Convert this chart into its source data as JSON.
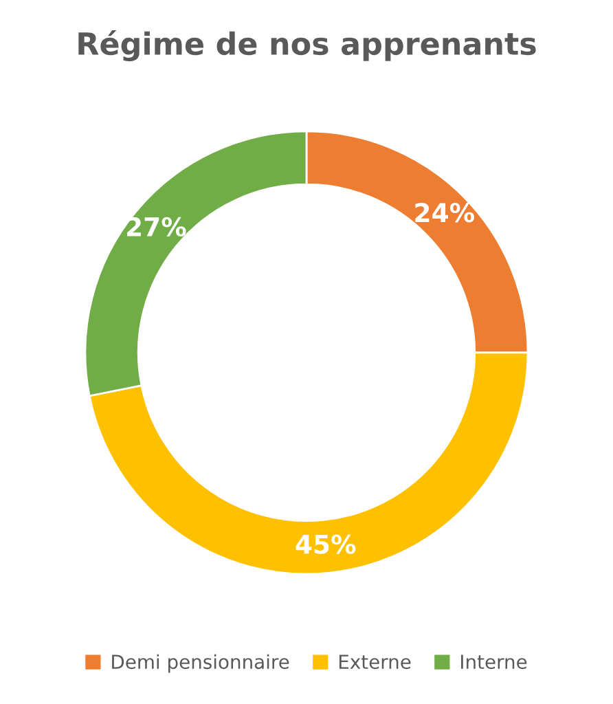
{
  "chart_data": {
    "type": "donut",
    "title": "Régime de nos apprenants",
    "categories": [
      "Demi pensionnaire",
      "Externe",
      "Interne"
    ],
    "values": [
      24,
      45,
      27
    ],
    "value_labels": [
      "24%",
      "45%",
      "27%"
    ],
    "colors": [
      "#ed7d31",
      "#ffc000",
      "#70ad47"
    ],
    "legend": "bottom"
  }
}
